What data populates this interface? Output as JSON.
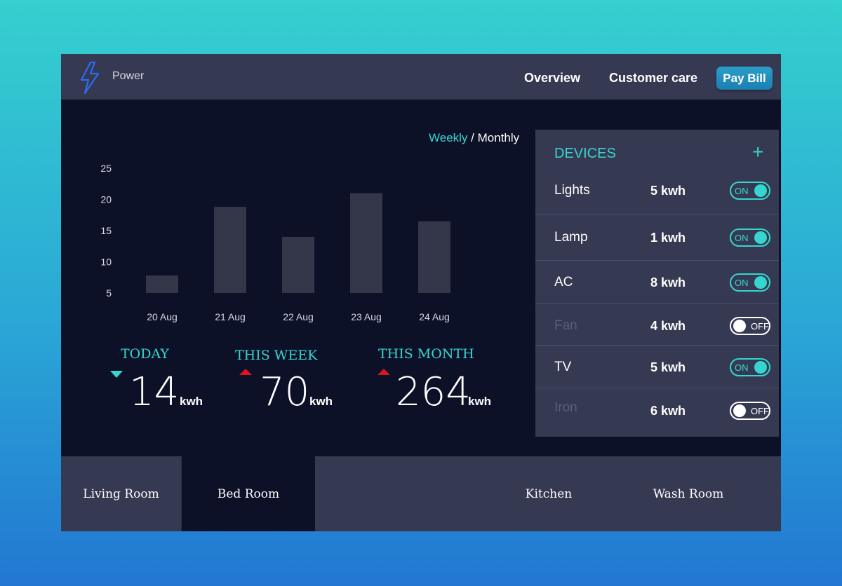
{
  "header": {
    "app_title": "Power",
    "logo_icon": "lightning-bolt-icon",
    "nav": [
      {
        "label": "Overview"
      },
      {
        "label": "Customer care"
      }
    ],
    "pay_button": "Pay Bill"
  },
  "period_toggle": {
    "weekly": "Weekly",
    "separator": "/",
    "monthly": "Monthly",
    "selected": "Weekly"
  },
  "chart_data": {
    "type": "bar",
    "categories": [
      "20 Aug",
      "21 Aug",
      "22 Aug",
      "23 Aug",
      "24 Aug"
    ],
    "values": [
      7.8,
      18.8,
      14,
      21,
      16.5
    ],
    "yticks": [
      5,
      10,
      15,
      20,
      25
    ],
    "ylim": [
      0,
      25
    ],
    "grid": false,
    "bar_color": "#343749",
    "title": "",
    "xlabel": "",
    "ylabel": ""
  },
  "stats": [
    {
      "label": "TODAY",
      "value": "14",
      "unit": "kwh",
      "trend": "down"
    },
    {
      "label": "THIS WEEK",
      "value": "70",
      "unit": "kwh",
      "trend": "up"
    },
    {
      "label": "THIS MONTH",
      "value": "264",
      "unit": "kwh",
      "trend": "up"
    }
  ],
  "devices": {
    "title": "DEVICES",
    "add_icon": "plus-icon",
    "items": [
      {
        "name": "Lights",
        "kwh": "5 kwh",
        "state": "ON"
      },
      {
        "name": "Lamp",
        "kwh": "1 kwh",
        "state": "ON"
      },
      {
        "name": "AC",
        "kwh": "8 kwh",
        "state": "ON"
      },
      {
        "name": "Fan",
        "kwh": "4 kwh",
        "state": "OFF"
      },
      {
        "name": "TV",
        "kwh": "5 kwh",
        "state": "ON"
      },
      {
        "name": "Iron",
        "kwh": "6 kwh",
        "state": "OFF"
      }
    ]
  },
  "rooms": [
    {
      "label": "Living Room"
    },
    {
      "label": "Bed Room",
      "active": true
    },
    {
      "label": "Kitchen"
    },
    {
      "label": "Wash Room"
    }
  ],
  "colors": {
    "accent": "#35d6cf",
    "trend_up": "#e0151b",
    "panel": "#363952",
    "background": "#0d1128",
    "pay_button": "#1f8bbf"
  }
}
